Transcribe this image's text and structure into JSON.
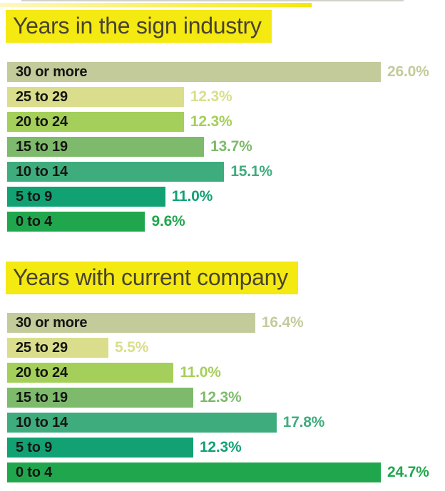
{
  "page": {
    "background": "#ffffff",
    "highlight_color": "#f5e912",
    "title_text_color": "#474331",
    "bar_label_color": "#151512"
  },
  "chart_data": [
    {
      "type": "bar",
      "orientation": "horizontal",
      "title": "Years in the sign industry",
      "categories": [
        "30 or more",
        "25 to 29",
        "20 to 24",
        "15 to 19",
        "10 to 14",
        "5 to 9",
        "0 to 4"
      ],
      "values": [
        26.0,
        12.3,
        12.3,
        13.7,
        15.1,
        11.0,
        9.6
      ],
      "value_labels": [
        "26.0%",
        "12.3%",
        "12.3%",
        "13.7%",
        "15.1%",
        "11.0%",
        "9.6%"
      ],
      "bar_colors": [
        "#c3cb9b",
        "#dade8c",
        "#a4cf5a",
        "#7eba6c",
        "#3fac7d",
        "#11a173",
        "#20a74d"
      ],
      "value_label_colors": [
        "#c3cb9b",
        "#dade8c",
        "#a4cf5a",
        "#7eba6c",
        "#3fac7d",
        "#11a173",
        "#20a74d"
      ],
      "xlim": [
        0,
        26
      ],
      "grid": false,
      "legend": false,
      "value_labels_position": "right-of-bar",
      "category_labels_position": "inside-bar-left"
    },
    {
      "type": "bar",
      "orientation": "horizontal",
      "title": "Years with current company",
      "categories": [
        "30 or more",
        "25 to 29",
        "20 to 24",
        "15 to 19",
        "10 to 14",
        "5 to 9",
        "0 to 4"
      ],
      "values": [
        16.4,
        5.5,
        11.0,
        12.3,
        17.8,
        12.3,
        24.7
      ],
      "value_labels": [
        "16.4%",
        "5.5%",
        "11.0%",
        "12.3%",
        "17.8%",
        "12.3%",
        "24.7%"
      ],
      "bar_colors": [
        "#c3cb9b",
        "#dade8c",
        "#a4cf5a",
        "#7eba6c",
        "#3fac7d",
        "#11a173",
        "#20a74d"
      ],
      "value_label_colors": [
        "#c3cb9b",
        "#dade8c",
        "#a4cf5a",
        "#7eba6c",
        "#3fac7d",
        "#11a173",
        "#20a74d"
      ],
      "xlim": [
        0,
        24.7
      ],
      "grid": false,
      "legend": false,
      "value_labels_position": "right-of-bar",
      "category_labels_position": "inside-bar-left"
    }
  ]
}
